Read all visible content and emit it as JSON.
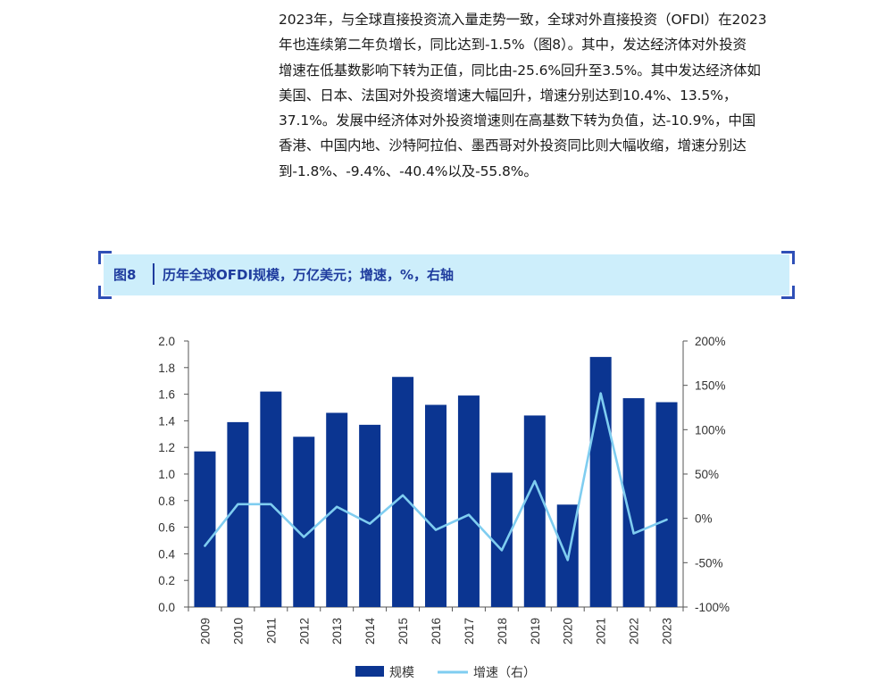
{
  "paragraph": {
    "lines": [
      "2023年，与全球直接投资流入量走势一致，全球对外直接投资（OFDI）在2023",
      "年也连续第二年负增长，同比达到-1.5%（图8）。其中，发达经济体对外投资",
      "增速在低基数影响下转为正值，同比由-25.6%回升至3.5%。其中发达经济体如",
      "美国、日本、法国对外投资增速大幅回升，增速分别达到10.4%、13.5%，",
      "37.1%。发展中经济体对外投资增速则在高基数下转为负值，达-10.9%，中国",
      "香港、中国内地、沙特阿拉伯、墨西哥对外投资同比则大幅收缩，增速分别达",
      "到-1.8%、-9.4%、-40.4%以及-55.8%。"
    ]
  },
  "figure": {
    "label": "图8",
    "title": "历年全球OFDI规模，万亿美元；增速，%，右轴"
  },
  "colors": {
    "bar": "#0b3591",
    "line": "#7fcdf0",
    "accent": "#2f4fb7",
    "band": "#cdeefb"
  },
  "chart_data": {
    "type": "bar+line",
    "categories": [
      "2009",
      "2010",
      "2011",
      "2012",
      "2013",
      "2014",
      "2015",
      "2016",
      "2017",
      "2018",
      "2019",
      "2020",
      "2021",
      "2022",
      "2023"
    ],
    "series": [
      {
        "name": "规模",
        "type": "bar",
        "axis": "left",
        "values": [
          1.17,
          1.39,
          1.62,
          1.28,
          1.46,
          1.37,
          1.73,
          1.52,
          1.59,
          1.01,
          1.44,
          0.77,
          1.88,
          1.57,
          1.54
        ]
      },
      {
        "name": "增速（右）",
        "type": "line",
        "axis": "right",
        "values": [
          -31,
          16,
          16,
          -21,
          13,
          -6,
          26,
          -13,
          4,
          -36,
          42,
          -47,
          141,
          -17,
          -1.5
        ]
      }
    ],
    "y_left": {
      "min": 0,
      "max": 2.0,
      "ticks": [
        "0.0",
        "0.2",
        "0.4",
        "0.6",
        "0.8",
        "1.0",
        "1.2",
        "1.4",
        "1.6",
        "1.8",
        "2.0"
      ]
    },
    "y_right": {
      "min": -100,
      "max": 200,
      "ticks": [
        "-100%",
        "-50%",
        "0%",
        "50%",
        "100%",
        "150%",
        "200%"
      ]
    },
    "legend": {
      "placement": "bottom",
      "items": [
        "规模",
        "增速（右）"
      ]
    }
  }
}
